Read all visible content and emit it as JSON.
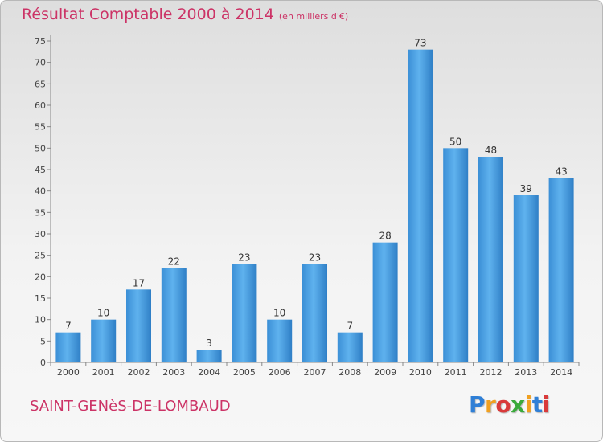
{
  "chart_data": {
    "type": "bar",
    "title": "Résultat Comptable 2000 à 2014",
    "subtitle": "(en milliers d'€)",
    "categories": [
      "2000",
      "2001",
      "2002",
      "2003",
      "2004",
      "2005",
      "2006",
      "2007",
      "2008",
      "2009",
      "2010",
      "2011",
      "2012",
      "2013",
      "2014"
    ],
    "values": [
      7,
      10,
      17,
      22,
      3,
      23,
      10,
      23,
      7,
      28,
      73,
      50,
      48,
      39,
      43
    ],
    "ylim": [
      0,
      75
    ],
    "yticks": [
      0,
      5,
      10,
      15,
      20,
      25,
      30,
      35,
      40,
      45,
      50,
      55,
      60,
      65,
      70,
      75
    ],
    "grid": false,
    "bar_color": "#4a9ee0"
  },
  "footer": {
    "commune": "SAINT-GENèS-DE-LOMBAUD"
  },
  "logo": {
    "text": "Proxiti",
    "letter_colors": [
      "#2f7fd6",
      "#f0a020",
      "#d93a3a",
      "#3aaa3a",
      "#f0a020",
      "#2f7fd6",
      "#d93a3a"
    ]
  }
}
